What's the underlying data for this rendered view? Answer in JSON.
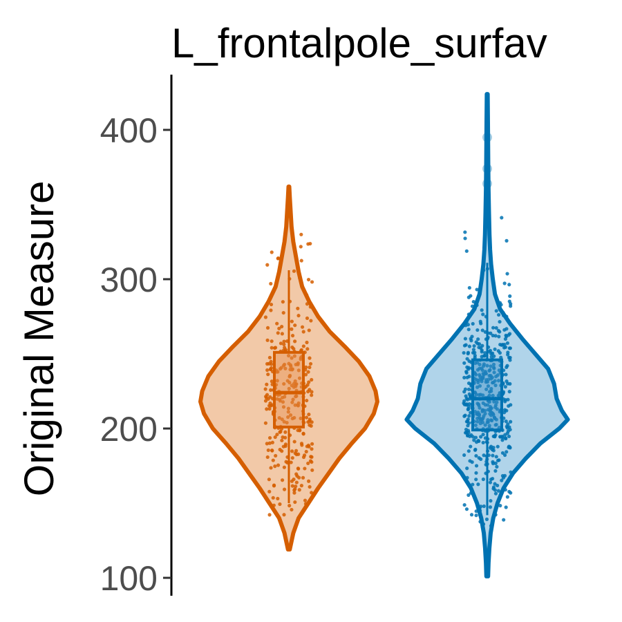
{
  "chart_data": {
    "type": "violin",
    "title": "L_frontalpole_surfav",
    "xlabel": "",
    "ylabel": "Original Measure",
    "ylim": [
      88,
      437
    ],
    "yticks": [
      100,
      200,
      300,
      400
    ],
    "grid": false,
    "legend": "none",
    "series": [
      {
        "color": "#D55E00",
        "fill": "#F2C9A8",
        "point_color": "#E69050",
        "min": 119,
        "max": 362,
        "box": {
          "q1": 201,
          "median": 224,
          "q3": 251,
          "whisker_low": 150,
          "whisker_high": 306
        },
        "outliers": [],
        "density": [
          [
            119,
            0.01
          ],
          [
            130,
            0.05
          ],
          [
            140,
            0.11
          ],
          [
            150,
            0.22
          ],
          [
            160,
            0.33
          ],
          [
            170,
            0.45
          ],
          [
            180,
            0.57
          ],
          [
            190,
            0.71
          ],
          [
            200,
            0.86
          ],
          [
            210,
            0.96
          ],
          [
            218,
            1.0
          ],
          [
            225,
            0.98
          ],
          [
            235,
            0.91
          ],
          [
            245,
            0.79
          ],
          [
            255,
            0.63
          ],
          [
            265,
            0.46
          ],
          [
            275,
            0.33
          ],
          [
            285,
            0.23
          ],
          [
            295,
            0.15
          ],
          [
            305,
            0.11
          ],
          [
            315,
            0.08
          ],
          [
            325,
            0.05
          ],
          [
            335,
            0.03
          ],
          [
            345,
            0.02
          ],
          [
            355,
            0.01
          ],
          [
            362,
            0.004
          ]
        ]
      },
      {
        "color": "#0072B2",
        "fill": "#B0D4EA",
        "point_color": "#3D90C8",
        "min": 101,
        "max": 424,
        "box": {
          "q1": 199,
          "median": 220,
          "q3": 246,
          "whisker_low": 142,
          "whisker_high": 311
        },
        "outliers": [
          395,
          374,
          364
        ],
        "density": [
          [
            101,
            0.01
          ],
          [
            110,
            0.015
          ],
          [
            120,
            0.025
          ],
          [
            130,
            0.04
          ],
          [
            140,
            0.07
          ],
          [
            150,
            0.12
          ],
          [
            160,
            0.19
          ],
          [
            170,
            0.3
          ],
          [
            180,
            0.45
          ],
          [
            190,
            0.62
          ],
          [
            200,
            0.84
          ],
          [
            206,
            0.94
          ],
          [
            212,
            0.87
          ],
          [
            220,
            0.81
          ],
          [
            230,
            0.78
          ],
          [
            240,
            0.71
          ],
          [
            250,
            0.56
          ],
          [
            260,
            0.41
          ],
          [
            270,
            0.27
          ],
          [
            280,
            0.15
          ],
          [
            290,
            0.09
          ],
          [
            300,
            0.065
          ],
          [
            310,
            0.045
          ],
          [
            320,
            0.033
          ],
          [
            330,
            0.026
          ],
          [
            345,
            0.02
          ],
          [
            360,
            0.015
          ],
          [
            375,
            0.012
          ],
          [
            390,
            0.01
          ],
          [
            405,
            0.008
          ],
          [
            424,
            0.005
          ]
        ]
      }
    ]
  }
}
